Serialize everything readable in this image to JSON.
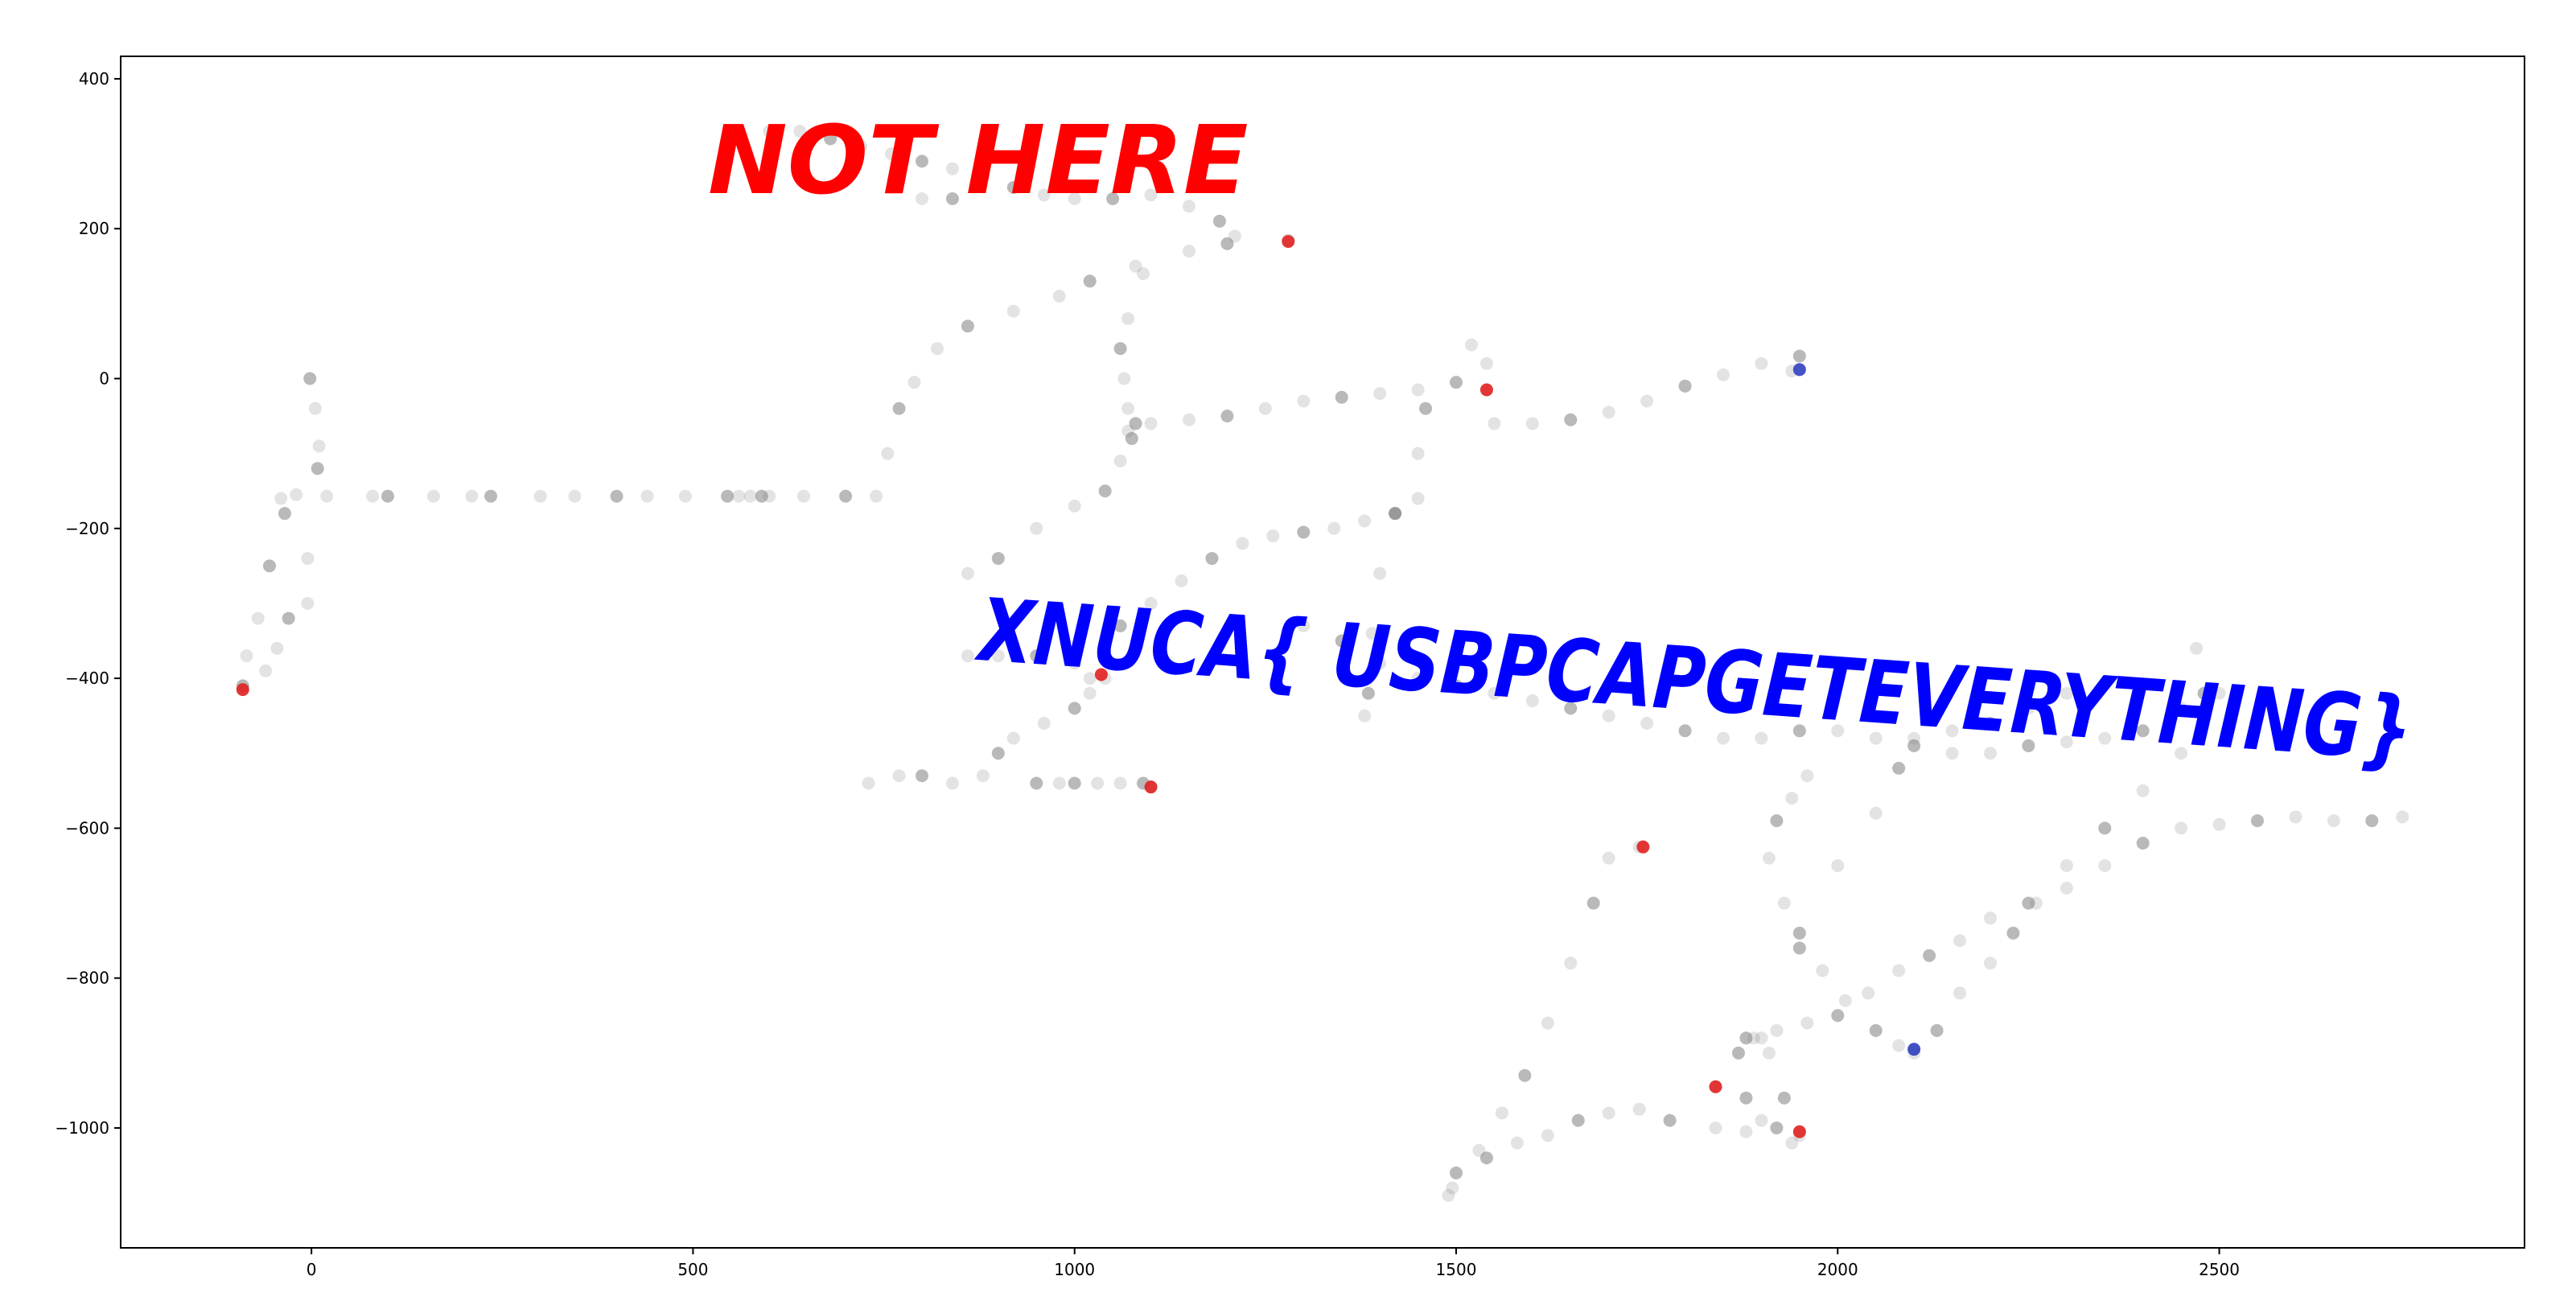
{
  "chart_data": {
    "type": "scatter",
    "title": "",
    "xlabel": "",
    "ylabel": "",
    "xlim": [
      -250,
      2900
    ],
    "ylim": [
      -1160,
      430
    ],
    "xticks": [
      0,
      500,
      1000,
      1500,
      2000,
      2500
    ],
    "yticks": [
      400,
      200,
      0,
      -200,
      -400,
      -600,
      -800,
      -1000
    ],
    "grid": false,
    "legend": "none",
    "series": [
      {
        "color": "#808080",
        "points": [
          [
            -2,
            0
          ],
          [
            5,
            -40
          ],
          [
            10,
            -90
          ],
          [
            8,
            -120
          ],
          [
            -20,
            -155
          ],
          [
            -40,
            -160
          ],
          [
            -55,
            -250
          ],
          [
            -70,
            -320
          ],
          [
            -85,
            -370
          ],
          [
            -90,
            -410
          ],
          [
            -60,
            -390
          ],
          [
            -45,
            -360
          ],
          [
            -30,
            -320
          ],
          [
            -5,
            -300
          ],
          [
            -5,
            -240
          ],
          [
            -35,
            -180
          ],
          [
            20,
            -157
          ],
          [
            80,
            -157
          ],
          [
            100,
            -157
          ],
          [
            160,
            -157
          ],
          [
            210,
            -157
          ],
          [
            235,
            -157
          ],
          [
            300,
            -157
          ],
          [
            345,
            -157
          ],
          [
            400,
            -157
          ],
          [
            440,
            -157
          ],
          [
            490,
            -157
          ],
          [
            545,
            -157
          ],
          [
            560,
            -157
          ],
          [
            575,
            -157
          ],
          [
            590,
            -157
          ],
          [
            600,
            -157
          ],
          [
            645,
            -157
          ],
          [
            700,
            -157
          ],
          [
            740,
            -157
          ],
          [
            755,
            -100
          ],
          [
            770,
            -40
          ],
          [
            790,
            -5
          ],
          [
            820,
            40
          ],
          [
            860,
            70
          ],
          [
            920,
            90
          ],
          [
            980,
            110
          ],
          [
            1020,
            130
          ],
          [
            1080,
            150
          ],
          [
            1150,
            170
          ],
          [
            1200,
            180
          ],
          [
            1280,
            185
          ],
          [
            540,
            280
          ],
          [
            560,
            320
          ],
          [
            600,
            330
          ],
          [
            640,
            330
          ],
          [
            680,
            320
          ],
          [
            720,
            310
          ],
          [
            760,
            300
          ],
          [
            800,
            290
          ],
          [
            840,
            280
          ],
          [
            880,
            270
          ],
          [
            920,
            255
          ],
          [
            960,
            245
          ],
          [
            1000,
            240
          ],
          [
            1050,
            240
          ],
          [
            1100,
            245
          ],
          [
            1150,
            230
          ],
          [
            1190,
            210
          ],
          [
            1210,
            190
          ],
          [
            800,
            240
          ],
          [
            840,
            240
          ],
          [
            1090,
            140
          ],
          [
            1070,
            80
          ],
          [
            1060,
            40
          ],
          [
            1065,
            0
          ],
          [
            1070,
            -40
          ],
          [
            1075,
            -80
          ],
          [
            730,
            -540
          ],
          [
            770,
            -530
          ],
          [
            800,
            -530
          ],
          [
            840,
            -540
          ],
          [
            880,
            -530
          ],
          [
            900,
            -500
          ],
          [
            920,
            -480
          ],
          [
            960,
            -460
          ],
          [
            1000,
            -440
          ],
          [
            1020,
            -420
          ],
          [
            1040,
            -400
          ],
          [
            1000,
            -540
          ],
          [
            1030,
            -540
          ],
          [
            1060,
            -540
          ],
          [
            1090,
            -540
          ],
          [
            1100,
            -545
          ],
          [
            980,
            -540
          ],
          [
            950,
            -540
          ],
          [
            860,
            -370
          ],
          [
            900,
            -370
          ],
          [
            950,
            -370
          ],
          [
            1000,
            -380
          ],
          [
            1020,
            -400
          ],
          [
            1060,
            -330
          ],
          [
            1100,
            -300
          ],
          [
            1140,
            -270
          ],
          [
            1180,
            -240
          ],
          [
            1220,
            -220
          ],
          [
            1260,
            -210
          ],
          [
            1300,
            -205
          ],
          [
            1340,
            -200
          ],
          [
            1380,
            -190
          ],
          [
            1420,
            -180
          ],
          [
            1450,
            -160
          ],
          [
            860,
            -260
          ],
          [
            900,
            -240
          ],
          [
            950,
            -200
          ],
          [
            1000,
            -170
          ],
          [
            1040,
            -150
          ],
          [
            1060,
            -110
          ],
          [
            1070,
            -70
          ],
          [
            1080,
            -60
          ],
          [
            1100,
            -60
          ],
          [
            1150,
            -55
          ],
          [
            1200,
            -50
          ],
          [
            1250,
            -40
          ],
          [
            1300,
            -30
          ],
          [
            1350,
            -25
          ],
          [
            1400,
            -20
          ],
          [
            1450,
            -15
          ],
          [
            1500,
            -5
          ],
          [
            1540,
            20
          ],
          [
            1520,
            45
          ],
          [
            1460,
            -40
          ],
          [
            1550,
            -60
          ],
          [
            1600,
            -60
          ],
          [
            1650,
            -55
          ],
          [
            1700,
            -45
          ],
          [
            1750,
            -30
          ],
          [
            1800,
            -10
          ],
          [
            1850,
            5
          ],
          [
            1900,
            20
          ],
          [
            1950,
            30
          ],
          [
            1940,
            10
          ],
          [
            1450,
            -100
          ],
          [
            1420,
            -180
          ],
          [
            1400,
            -260
          ],
          [
            1390,
            -340
          ],
          [
            1385,
            -420
          ],
          [
            1380,
            -450
          ],
          [
            1300,
            -330
          ],
          [
            1350,
            -350
          ],
          [
            1400,
            -380
          ],
          [
            1450,
            -400
          ],
          [
            1500,
            -410
          ],
          [
            1550,
            -420
          ],
          [
            1600,
            -430
          ],
          [
            1650,
            -440
          ],
          [
            1700,
            -450
          ],
          [
            1750,
            -460
          ],
          [
            1800,
            -470
          ],
          [
            1850,
            -480
          ],
          [
            1900,
            -480
          ],
          [
            1950,
            -470
          ],
          [
            2000,
            -470
          ],
          [
            2050,
            -480
          ],
          [
            2100,
            -490
          ],
          [
            2150,
            -500
          ],
          [
            2200,
            -500
          ],
          [
            2250,
            -490
          ],
          [
            2300,
            -485
          ],
          [
            2350,
            -480
          ],
          [
            2400,
            -470
          ],
          [
            2450,
            -440
          ],
          [
            2470,
            -360
          ],
          [
            2480,
            -420
          ],
          [
            1740,
            -625
          ],
          [
            1700,
            -640
          ],
          [
            1680,
            -700
          ],
          [
            1650,
            -780
          ],
          [
            1620,
            -860
          ],
          [
            1590,
            -930
          ],
          [
            1560,
            -980
          ],
          [
            1530,
            -1030
          ],
          [
            1500,
            -1060
          ],
          [
            1490,
            -1090
          ],
          [
            1495,
            -1080
          ],
          [
            1540,
            -1040
          ],
          [
            1580,
            -1020
          ],
          [
            1620,
            -1010
          ],
          [
            1660,
            -990
          ],
          [
            1700,
            -980
          ],
          [
            1740,
            -975
          ],
          [
            1780,
            -990
          ],
          [
            1840,
            -1000
          ],
          [
            1880,
            -1005
          ],
          [
            1920,
            -1000
          ],
          [
            1950,
            -1010
          ],
          [
            1840,
            -945
          ],
          [
            1870,
            -900
          ],
          [
            1890,
            -880
          ],
          [
            1910,
            -900
          ],
          [
            1930,
            -960
          ],
          [
            1940,
            -1020
          ],
          [
            1900,
            -990
          ],
          [
            1880,
            -960
          ],
          [
            1960,
            -530
          ],
          [
            1940,
            -560
          ],
          [
            1920,
            -590
          ],
          [
            1910,
            -640
          ],
          [
            1930,
            -700
          ],
          [
            1950,
            -740
          ],
          [
            1980,
            -790
          ],
          [
            2010,
            -830
          ],
          [
            2050,
            -870
          ],
          [
            2080,
            -890
          ],
          [
            2100,
            -895
          ],
          [
            1880,
            -880
          ],
          [
            1920,
            -870
          ],
          [
            1960,
            -860
          ],
          [
            2000,
            -850
          ],
          [
            2040,
            -820
          ],
          [
            2080,
            -790
          ],
          [
            2120,
            -770
          ],
          [
            2160,
            -750
          ],
          [
            2200,
            -720
          ],
          [
            2250,
            -700
          ],
          [
            2300,
            -680
          ],
          [
            2350,
            -650
          ],
          [
            2400,
            -620
          ],
          [
            2450,
            -600
          ],
          [
            2500,
            -595
          ],
          [
            2550,
            -590
          ],
          [
            2600,
            -585
          ],
          [
            2650,
            -590
          ],
          [
            2700,
            -590
          ],
          [
            2740,
            -585
          ],
          [
            2100,
            -900
          ],
          [
            2130,
            -870
          ],
          [
            2160,
            -820
          ],
          [
            2200,
            -780
          ],
          [
            2230,
            -740
          ],
          [
            2260,
            -700
          ],
          [
            2300,
            -650
          ],
          [
            2350,
            -600
          ],
          [
            2400,
            -550
          ],
          [
            2450,
            -500
          ],
          [
            2480,
            -450
          ],
          [
            2500,
            -420
          ],
          [
            1900,
            -880
          ],
          [
            1950,
            -760
          ],
          [
            2000,
            -650
          ],
          [
            2050,
            -580
          ],
          [
            2080,
            -520
          ],
          [
            2100,
            -480
          ],
          [
            2150,
            -470
          ],
          [
            2200,
            -460
          ],
          [
            2250,
            -440
          ],
          [
            2300,
            -420
          ]
        ]
      },
      {
        "color": "#e02020",
        "points": [
          [
            -90,
            -415
          ],
          [
            1280,
            183
          ],
          [
            1540,
            -15
          ],
          [
            1035,
            -395
          ],
          [
            1100,
            -545
          ],
          [
            1745,
            -625
          ],
          [
            1840,
            -945
          ],
          [
            1950,
            -1005
          ]
        ]
      },
      {
        "color": "#3040c0",
        "points": [
          [
            1950,
            12
          ],
          [
            2100,
            -895
          ]
        ]
      }
    ],
    "annotations": [
      {
        "text": "NOT HERE",
        "color": "#ff0000"
      },
      {
        "text": "XNUCA{ USBPCAPGETEVERYTHING}",
        "color": "#0000ff"
      }
    ]
  }
}
